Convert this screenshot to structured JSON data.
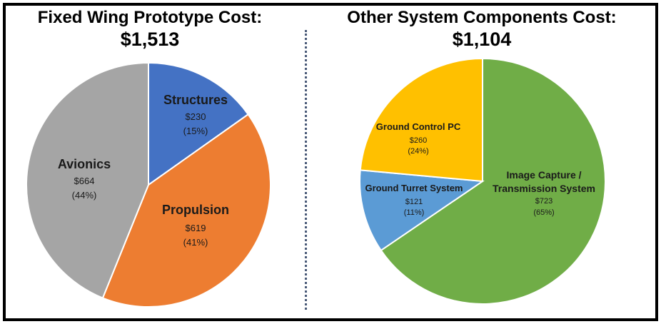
{
  "chart_data": [
    {
      "type": "pie",
      "title": "Fixed Wing Prototype Cost:",
      "subtitle": "$1,513",
      "slices": [
        {
          "label": "Structures",
          "value_text": "$230",
          "pct_text": "(15%)",
          "value": 230,
          "color": "#4472c4"
        },
        {
          "label": "Propulsion",
          "value_text": "$619",
          "pct_text": "(41%)",
          "value": 619,
          "color": "#ed7d31"
        },
        {
          "label": "Avionics",
          "value_text": "$664",
          "pct_text": "(44%)",
          "value": 664,
          "color": "#a5a5a5"
        }
      ]
    },
    {
      "type": "pie",
      "title": "Other System Components Cost:",
      "subtitle": "$1,104",
      "slices": [
        {
          "label": "Image Capture / Transmission System",
          "label_lines": [
            "Image Capture /",
            "Transmission System"
          ],
          "value_text": "$723",
          "pct_text": "(65%)",
          "value": 723,
          "color": "#70ad47"
        },
        {
          "label": "Ground Turret System",
          "value_text": "$121",
          "pct_text": "(11%)",
          "value": 121,
          "color": "#5b9bd5"
        },
        {
          "label": "Ground Control PC",
          "value_text": "$260",
          "pct_text": "(24%)",
          "value": 260,
          "color": "#ffc000"
        }
      ]
    }
  ]
}
